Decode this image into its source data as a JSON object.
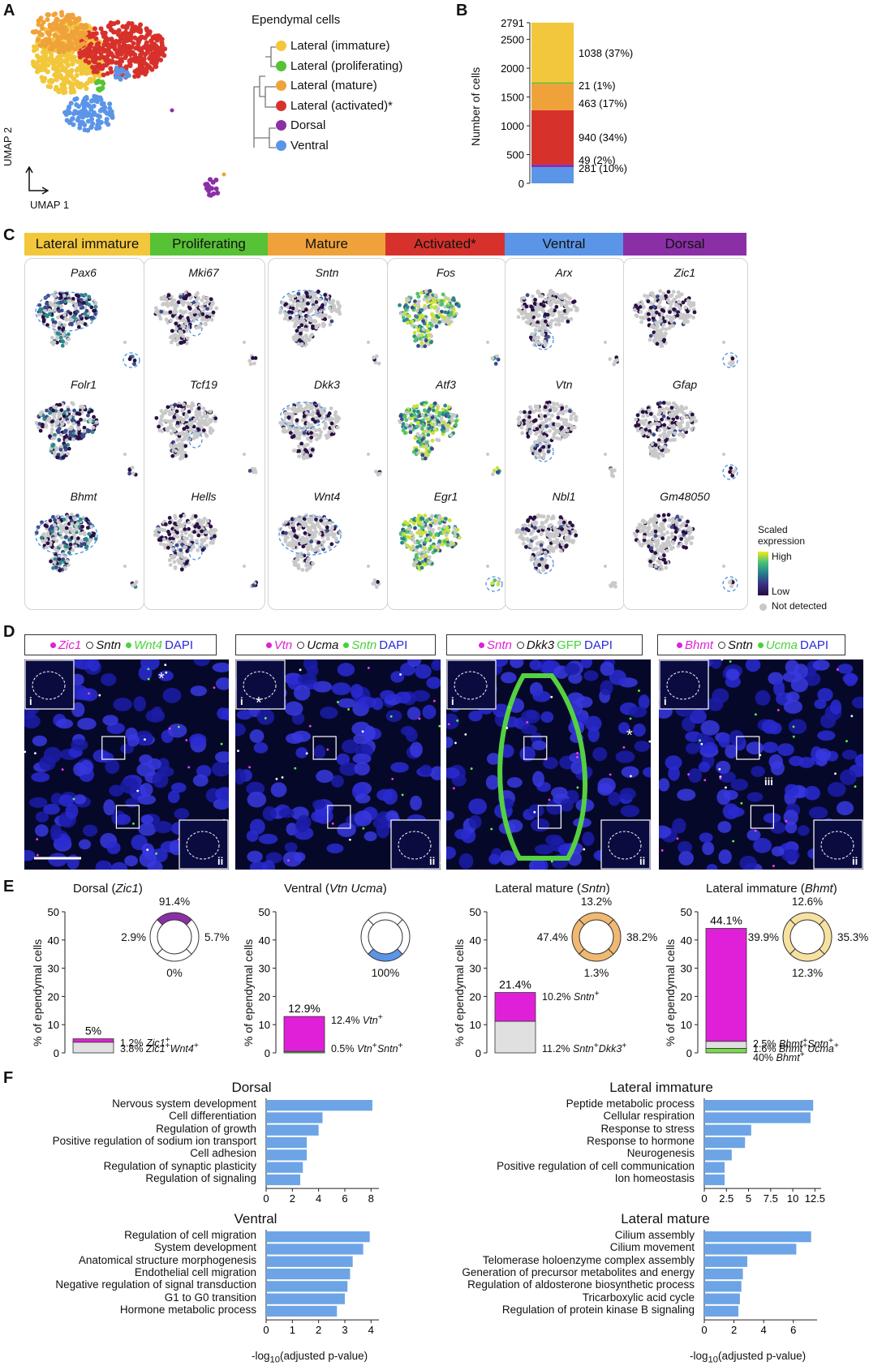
{
  "panels": {
    "A": "A",
    "B": "B",
    "C": "C",
    "D": "D",
    "E": "E",
    "F": "F"
  },
  "panelA": {
    "legend_title": "Ependymal cells",
    "clusters": [
      {
        "label": "Lateral (immature)",
        "color": "#f2c73b"
      },
      {
        "label": "Lateral (proliferating)",
        "color": "#57c235"
      },
      {
        "label": "Lateral (mature)",
        "color": "#f0a23a"
      },
      {
        "label": "Lateral (activated)*",
        "color": "#d7312c"
      },
      {
        "label": "Dorsal",
        "color": "#8b2fa6"
      },
      {
        "label": "Ventral",
        "color": "#5b95e8"
      }
    ],
    "axis_y": "UMAP 2",
    "axis_x": "UMAP 1"
  },
  "panelB": {
    "chart_data": {
      "type": "bar",
      "ylabel": "Number of cells",
      "yticks": [
        "0",
        "500",
        "1000",
        "1500",
        "2000",
        "2500",
        "2791"
      ],
      "ymax": 2791,
      "segments": [
        {
          "name": "Ventral",
          "value": 281,
          "label": "281 (10%)",
          "color": "#5b95e8"
        },
        {
          "name": "Dorsal",
          "value": 49,
          "label": "49 (2%)",
          "color": "#8b2fa6"
        },
        {
          "name": "Lateral (activated)",
          "value": 940,
          "label": "940 (34%)",
          "color": "#d7312c"
        },
        {
          "name": "Lateral (mature)",
          "value": 463,
          "label": "463 (17%)",
          "color": "#f0a23a"
        },
        {
          "name": "Lateral (proliferating)",
          "value": 21,
          "label": "21 (1%)",
          "color": "#57c235"
        },
        {
          "name": "Lateral (immature)",
          "value": 1038,
          "label": "1038 (37%)",
          "color": "#f2c73b"
        }
      ]
    }
  },
  "panelC": {
    "strip": [
      {
        "label": "Lateral immature",
        "color": "#f2c73b"
      },
      {
        "label": "Proliferating",
        "color": "#57c235"
      },
      {
        "label": "Mature",
        "color": "#f0a23a"
      },
      {
        "label": "Activated*",
        "color": "#d7312c"
      },
      {
        "label": "Ventral",
        "color": "#5b95e8"
      },
      {
        "label": "Dorsal",
        "color": "#8b2fa6"
      }
    ],
    "genes": [
      [
        "Pax6",
        "Folr1",
        "Bhmt"
      ],
      [
        "Mki67",
        "Tcf19",
        "Hells"
      ],
      [
        "Sntn",
        "Dkk3",
        "Wnt4"
      ],
      [
        "Fos",
        "Atf3",
        "Egr1"
      ],
      [
        "Arx",
        "Vtn",
        "Nbl1"
      ],
      [
        "Zic1",
        "Gfap",
        "Gm48050"
      ]
    ],
    "legend": {
      "title1": "Scaled",
      "title2": "expression",
      "high": "High",
      "low": "Low",
      "nd": "Not detected"
    }
  },
  "panelD": {
    "legends": [
      [
        {
          "t": "Zic1",
          "c": "#e020d8",
          "i": true,
          "dot": "#e020d8"
        },
        {
          "t": "Sntn",
          "c": "#111",
          "i": true,
          "dot": "hollow"
        },
        {
          "t": "Wnt4",
          "c": "#47d23a",
          "i": true,
          "dot": "#47d23a"
        },
        {
          "t": "DAPI",
          "c": "#2a2ad8",
          "i": false,
          "dot": ""
        }
      ],
      [
        {
          "t": "Vtn",
          "c": "#e020d8",
          "i": true,
          "dot": "#e020d8"
        },
        {
          "t": "Ucma",
          "c": "#111",
          "i": true,
          "dot": "hollow"
        },
        {
          "t": "Sntn",
          "c": "#47d23a",
          "i": true,
          "dot": "#47d23a"
        },
        {
          "t": "DAPI",
          "c": "#2a2ad8",
          "i": false,
          "dot": ""
        }
      ],
      [
        {
          "t": "Sntn",
          "c": "#e020d8",
          "i": true,
          "dot": "#e020d8"
        },
        {
          "t": "Dkk3",
          "c": "#111",
          "i": true,
          "dot": "hollow"
        },
        {
          "t": "GFP",
          "c": "#47d23a",
          "i": false,
          "dot": ""
        },
        {
          "t": "DAPI",
          "c": "#2a2ad8",
          "i": false,
          "dot": ""
        }
      ],
      [
        {
          "t": "Bhmt",
          "c": "#e020d8",
          "i": true,
          "dot": "#e020d8"
        },
        {
          "t": "Sntn",
          "c": "#111",
          "i": true,
          "dot": "hollow"
        },
        {
          "t": "Ucma",
          "c": "#47d23a",
          "i": true,
          "dot": "#47d23a"
        },
        {
          "t": "DAPI",
          "c": "#2a2ad8",
          "i": false,
          "dot": ""
        }
      ]
    ],
    "markers": {
      "i": "i",
      "ii": "ii",
      "iii": "iii",
      "star": "*"
    }
  },
  "panelE": {
    "ylabel": "% of ependymal cells",
    "yticks": [
      "0",
      "10",
      "20",
      "30",
      "40",
      "50"
    ],
    "groups": [
      {
        "title": "Dorsal (",
        "title_gene": "Zic1",
        "title_end": ")",
        "total": "5%",
        "ring": {
          "top": "91.4%",
          "left": "2.9%",
          "right": "5.7%",
          "bottom": "0%",
          "highlight": "top",
          "color": "#8b2fa6"
        },
        "bars": [
          {
            "value": 3.8,
            "color": "#e0e0e0",
            "label": "3.8% ",
            "gene": "Zic1",
            "sup": "+",
            "gene2": "Wnt4",
            "sup2": "+"
          },
          {
            "value": 1.2,
            "color": "#e020d8",
            "label": "1.2% ",
            "gene": "Zic1",
            "sup": "+",
            "gene2": "",
            "sup2": ""
          }
        ]
      },
      {
        "title": "Ventral (",
        "title_gene": "Vtn Ucma",
        "title_end": ")",
        "total": "12.9%",
        "ring": {
          "top": "",
          "left": "",
          "right": "",
          "bottom": "100%",
          "highlight": "bottom",
          "color": "#5b95e8"
        },
        "bars": [
          {
            "value": 0.5,
            "color": "#47d23a",
            "label": "0.5% ",
            "gene": "Vtn",
            "sup": "+",
            "gene2": "Sntn",
            "sup2": "+"
          },
          {
            "value": 12.4,
            "color": "#e020d8",
            "label": "12.4% ",
            "gene": "Vtn",
            "sup": "+",
            "gene2": "",
            "sup2": ""
          }
        ]
      },
      {
        "title": "Lateral mature (",
        "title_gene": "Sntn",
        "title_end": ")",
        "total": "21.4%",
        "ring": {
          "top": "13.2%",
          "left": "47.4%",
          "right": "38.2%",
          "bottom": "1.3%",
          "highlight": "all",
          "color": "#f0b870"
        },
        "bars": [
          {
            "value": 11.2,
            "color": "#e0e0e0",
            "label": "11.2% ",
            "gene": "Sntn",
            "sup": "+",
            "gene2": "Dkk3",
            "sup2": "+"
          },
          {
            "value": 10.2,
            "color": "#e020d8",
            "label": "10.2% ",
            "gene": "Sntn",
            "sup": "+",
            "gene2": "",
            "sup2": ""
          }
        ]
      },
      {
        "title": "Lateral immature (",
        "title_gene": "Bhmt",
        "title_end": ")",
        "total": "44.1%",
        "ring": {
          "top": "12.6%",
          "left": "39.9%",
          "right": "35.3%",
          "bottom": "12.3%",
          "highlight": "all",
          "color": "#f6e1a0"
        },
        "bars": [
          {
            "value": 1.6,
            "color": "#7ad84a",
            "label": "1.6% ",
            "gene": "Bhmt",
            "sup": "+",
            "gene2": "Ucma",
            "sup2": "+"
          },
          {
            "value": 2.5,
            "color": "#e0e0e0",
            "label": "2.5% ",
            "gene": "Bhmt",
            "sup": "+",
            "gene2": "Sntn",
            "sup2": "+"
          },
          {
            "value": 40,
            "color": "#e020d8",
            "label": "40% ",
            "gene": "Bhmt",
            "sup": "+",
            "gene2": "",
            "sup2": ""
          }
        ]
      }
    ]
  },
  "panelF": {
    "xlabel": "-log",
    "xlabel_sub": "10",
    "xlabel_end": "(adjusted p-value)",
    "chart_data": [
      {
        "title": "Dorsal",
        "type": "bar",
        "xticks": [
          "0",
          "2",
          "4",
          "6",
          "8"
        ],
        "xmax": 8.6,
        "terms": [
          "Nervous system development",
          "Cell differentiation",
          "Regulation of growth",
          "Positive regulation of sodium ion transport",
          "Cell adhesion",
          "Regulation of synaptic plasticity",
          "Regulation of signaling"
        ],
        "values": [
          8.1,
          4.3,
          4.0,
          3.1,
          3.1,
          2.8,
          2.6
        ]
      },
      {
        "title": "Lateral immature",
        "type": "bar",
        "xticks": [
          "0",
          "2.5",
          "5",
          "7.5",
          "10",
          "12.5"
        ],
        "xmax": 13.2,
        "terms": [
          "Peptide metabolic process",
          "Cellular respiration",
          "Response to stress",
          "Response to hormone",
          "Neurogenesis",
          "Positive regulation of cell communication",
          "Ion homeostasis"
        ],
        "values": [
          12.3,
          12.0,
          5.3,
          4.6,
          3.1,
          2.3,
          2.3
        ]
      },
      {
        "title": "Ventral",
        "type": "bar",
        "xticks": [
          "0",
          "1",
          "2",
          "3",
          "4"
        ],
        "xmax": 4.3,
        "terms": [
          "Regulation of cell migration",
          "System development",
          "Anatomical structure morphogenesis",
          "Endothelial cell migration",
          "Negative regulation of signal transduction",
          "G1 to G0 transition",
          "Hormone metabolic process"
        ],
        "values": [
          3.95,
          3.7,
          3.3,
          3.2,
          3.1,
          3.0,
          2.7
        ]
      },
      {
        "title": "Lateral mature",
        "type": "bar",
        "xticks": [
          "0",
          "2",
          "4",
          "6"
        ],
        "xmax": 7.6,
        "terms": [
          "Cilium assembly",
          "Cilium movement",
          "Telomerase holoenzyme complex assembly",
          "Generation of precursor metabolites and energy",
          "Regulation of aldosterone biosynthetic process",
          "Tricarboxylic acid cycle",
          "Regulation of protein kinase B signaling"
        ],
        "values": [
          7.2,
          6.2,
          2.9,
          2.6,
          2.5,
          2.4,
          2.3
        ]
      }
    ]
  }
}
